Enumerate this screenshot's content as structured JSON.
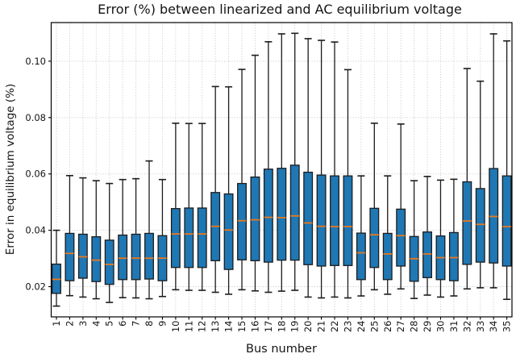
{
  "chart_data": {
    "type": "boxplot",
    "title": "Error (%) between linearized and AC equilibrium voltage",
    "xlabel": "Bus number",
    "ylabel": "Error in equilibrium voltage (%)",
    "legend": "none",
    "grid": "dotted, both axes",
    "categories": [
      "1",
      "2",
      "3",
      "4",
      "5",
      "6",
      "7",
      "8",
      "9",
      "10",
      "11",
      "12",
      "13",
      "14",
      "15",
      "16",
      "17",
      "18",
      "19",
      "20",
      "21",
      "22",
      "23",
      "24",
      "25",
      "26",
      "27",
      "28",
      "29",
      "30",
      "31",
      "32",
      "33",
      "34",
      "35"
    ],
    "y_ticks": [
      0.02,
      0.04,
      0.06,
      0.08,
      0.1
    ],
    "y_tick_labels": [
      "0.02",
      "0.04",
      "0.06",
      "0.08",
      "0.10"
    ],
    "ylim": [
      0.0093,
      0.1137
    ],
    "value_keys": [
      "whisker_low",
      "q1",
      "median",
      "q3",
      "whisker_high"
    ],
    "boxes": [
      [
        0.0131,
        0.0176,
        0.0226,
        0.028,
        0.04
      ],
      [
        0.0168,
        0.0221,
        0.0318,
        0.0389,
        0.0594
      ],
      [
        0.0163,
        0.023,
        0.0306,
        0.0386,
        0.0586
      ],
      [
        0.0157,
        0.0218,
        0.0294,
        0.0377,
        0.0576
      ],
      [
        0.0144,
        0.0208,
        0.0279,
        0.0365,
        0.0566
      ],
      [
        0.0161,
        0.0225,
        0.0301,
        0.0383,
        0.058
      ],
      [
        0.016,
        0.0225,
        0.0301,
        0.0386,
        0.0583
      ],
      [
        0.0157,
        0.0227,
        0.0301,
        0.0389,
        0.0646
      ],
      [
        0.0165,
        0.0221,
        0.0301,
        0.0381,
        0.058
      ],
      [
        0.0189,
        0.0268,
        0.0387,
        0.0477,
        0.078
      ],
      [
        0.0187,
        0.0268,
        0.0387,
        0.0479,
        0.0779
      ],
      [
        0.0187,
        0.0268,
        0.0387,
        0.0479,
        0.0779
      ],
      [
        0.018,
        0.0292,
        0.0414,
        0.0534,
        0.091
      ],
      [
        0.0173,
        0.0261,
        0.0401,
        0.0529,
        0.0909
      ],
      [
        0.0189,
        0.0295,
        0.0434,
        0.0566,
        0.0971
      ],
      [
        0.0185,
        0.0292,
        0.0437,
        0.0589,
        0.1021
      ],
      [
        0.018,
        0.0287,
        0.0446,
        0.0617,
        0.1069
      ],
      [
        0.0184,
        0.0294,
        0.0445,
        0.062,
        0.1097
      ],
      [
        0.0187,
        0.0294,
        0.0451,
        0.0631,
        0.1099
      ],
      [
        0.0163,
        0.0278,
        0.0426,
        0.0606,
        0.108
      ],
      [
        0.016,
        0.0273,
        0.0414,
        0.0596,
        0.1074
      ],
      [
        0.0163,
        0.0275,
        0.0413,
        0.0593,
        0.1068
      ],
      [
        0.016,
        0.0275,
        0.0413,
        0.0593,
        0.097
      ],
      [
        0.0167,
        0.0225,
        0.032,
        0.039,
        0.0593
      ],
      [
        0.0189,
        0.0268,
        0.0384,
        0.0478,
        0.078
      ],
      [
        0.0173,
        0.0225,
        0.0316,
        0.0389,
        0.0593
      ],
      [
        0.0192,
        0.0273,
        0.0381,
        0.0475,
        0.0777
      ],
      [
        0.0158,
        0.0219,
        0.0299,
        0.0378,
        0.0576
      ],
      [
        0.017,
        0.0232,
        0.0316,
        0.0394,
        0.0591
      ],
      [
        0.0163,
        0.0225,
        0.0303,
        0.038,
        0.0578
      ],
      [
        0.0167,
        0.0221,
        0.0303,
        0.0392,
        0.0581
      ],
      [
        0.0192,
        0.0279,
        0.0433,
        0.0572,
        0.0974
      ],
      [
        0.0196,
        0.0287,
        0.0421,
        0.0548,
        0.0929
      ],
      [
        0.0196,
        0.0284,
        0.0449,
        0.0619,
        0.1097
      ],
      [
        0.0155,
        0.0273,
        0.0413,
        0.0593,
        0.1072
      ]
    ]
  },
  "colors": {
    "box_fill": "#1f77b4",
    "box_edge": "#1c1c1c",
    "median": "#e8791e",
    "whisker": "#1c1c1c",
    "grid": "#bfbfbf",
    "spine": "#000000",
    "text": "#141414",
    "background": "#ffffff"
  }
}
